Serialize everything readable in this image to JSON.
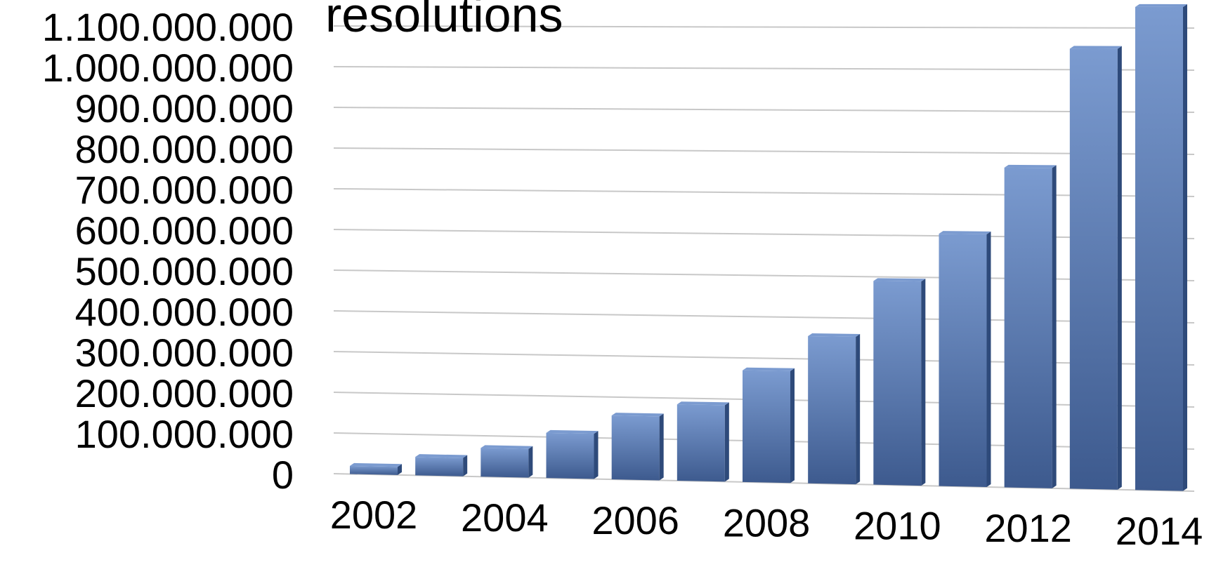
{
  "chart_data": {
    "type": "bar",
    "title": "resolutions",
    "xlabel": "",
    "ylabel": "",
    "ylim": [
      0,
      1100000000
    ],
    "y_ticks": [
      "0",
      "100.000.000",
      "200.000.000",
      "300.000.000",
      "400.000.000",
      "500.000.000",
      "600.000.000",
      "700.000.000",
      "800.000.000",
      "900.000.000",
      "1.000.000.000",
      "1.100.000.000"
    ],
    "x_tick_labels": [
      "2002",
      "2004",
      "2006",
      "2008",
      "2010",
      "2012",
      "2014"
    ],
    "categories": [
      "2002",
      "2003",
      "2004",
      "2005",
      "2006",
      "2007",
      "2008",
      "2009",
      "2010",
      "2011",
      "2012",
      "2013",
      "2014"
    ],
    "series": [
      {
        "values": [
          20000000,
          45000000,
          70000000,
          110000000,
          155000000,
          185000000,
          270000000,
          355000000,
          490000000,
          605000000,
          765000000,
          1050000000,
          1150000000
        ]
      }
    ],
    "grid": true,
    "legend": "none",
    "style": "3d-column",
    "colors": {
      "bar_top": "#7b9bd0",
      "bar_bottom": "#3d5a8e",
      "bar_side": "#2e4a7a",
      "grid": "#c8c8c8"
    }
  }
}
